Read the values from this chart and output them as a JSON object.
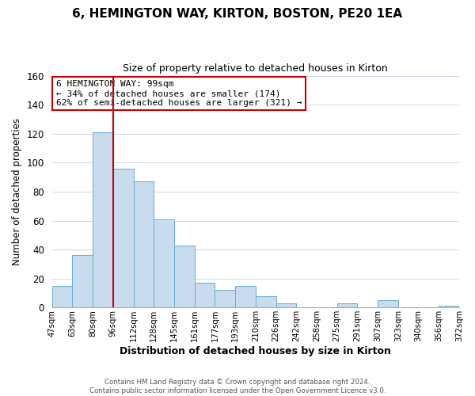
{
  "title": "6, HEMINGTON WAY, KIRTON, BOSTON, PE20 1EA",
  "subtitle": "Size of property relative to detached houses in Kirton",
  "xlabel": "Distribution of detached houses by size in Kirton",
  "ylabel": "Number of detached properties",
  "bin_labels": [
    "47sqm",
    "63sqm",
    "80sqm",
    "96sqm",
    "112sqm",
    "128sqm",
    "145sqm",
    "161sqm",
    "177sqm",
    "193sqm",
    "210sqm",
    "226sqm",
    "242sqm",
    "258sqm",
    "275sqm",
    "291sqm",
    "307sqm",
    "323sqm",
    "340sqm",
    "356sqm",
    "372sqm"
  ],
  "bar_heights": [
    15,
    36,
    121,
    96,
    87,
    61,
    43,
    17,
    12,
    15,
    8,
    3,
    0,
    0,
    3,
    0,
    5,
    0,
    0,
    1
  ],
  "bar_color": "#c8dced",
  "bar_edge_color": "#6aaed6",
  "property_line_x": 3,
  "property_line_color": "#cc0000",
  "annotation_text": "6 HEMINGTON WAY: 99sqm\n← 34% of detached houses are smaller (174)\n62% of semi-detached houses are larger (321) →",
  "annotation_box_color": "#ffffff",
  "annotation_box_edge_color": "#cc0000",
  "ylim": [
    0,
    160
  ],
  "yticks": [
    0,
    20,
    40,
    60,
    80,
    100,
    120,
    140,
    160
  ],
  "footer_line1": "Contains HM Land Registry data © Crown copyright and database right 2024.",
  "footer_line2": "Contains public sector information licensed under the Open Government Licence v3.0.",
  "background_color": "#ffffff",
  "grid_color": "#cdd8e8"
}
